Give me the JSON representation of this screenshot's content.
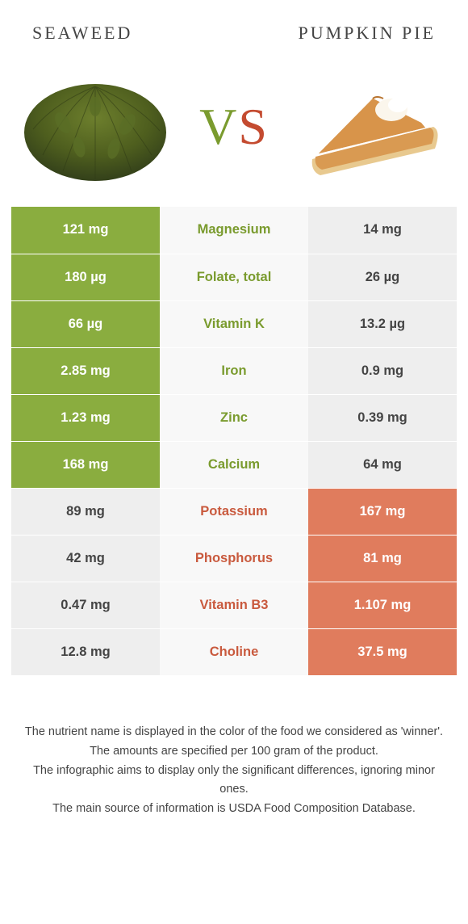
{
  "header": {
    "left_title": "SEAWEED",
    "right_title": "PUMPKIN PIE",
    "vs_v": "V",
    "vs_s": "S"
  },
  "colors": {
    "green_bg": "#8aad3f",
    "orange_bg": "#e07c5d",
    "gray_bg": "#eeeeee",
    "label_green": "#7a9b2e",
    "label_orange": "#c95a3e",
    "white": "#ffffff",
    "text_dark": "#444444"
  },
  "rows": [
    {
      "left": "121 mg",
      "label": "Magnesium",
      "right": "14 mg",
      "winner": "left"
    },
    {
      "left": "180 µg",
      "label": "Folate, total",
      "right": "26 µg",
      "winner": "left"
    },
    {
      "left": "66 µg",
      "label": "Vitamin K",
      "right": "13.2 µg",
      "winner": "left"
    },
    {
      "left": "2.85 mg",
      "label": "Iron",
      "right": "0.9 mg",
      "winner": "left"
    },
    {
      "left": "1.23 mg",
      "label": "Zinc",
      "right": "0.39 mg",
      "winner": "left"
    },
    {
      "left": "168 mg",
      "label": "Calcium",
      "right": "64 mg",
      "winner": "left"
    },
    {
      "left": "89 mg",
      "label": "Potassium",
      "right": "167 mg",
      "winner": "right"
    },
    {
      "left": "42 mg",
      "label": "Phosphorus",
      "right": "81 mg",
      "winner": "right"
    },
    {
      "left": "0.47 mg",
      "label": "Vitamin B3",
      "right": "1.107 mg",
      "winner": "right"
    },
    {
      "left": "12.8 mg",
      "label": "Choline",
      "right": "37.5 mg",
      "winner": "right"
    }
  ],
  "notes": {
    "line1": "The nutrient name is displayed in the color of the food we considered as 'winner'.",
    "line2": "The amounts are specified per 100 gram of the product.",
    "line3": "The infographic aims to display only the significant differences, ignoring minor ones.",
    "line4": "The main source of information is USDA Food Composition Database."
  }
}
